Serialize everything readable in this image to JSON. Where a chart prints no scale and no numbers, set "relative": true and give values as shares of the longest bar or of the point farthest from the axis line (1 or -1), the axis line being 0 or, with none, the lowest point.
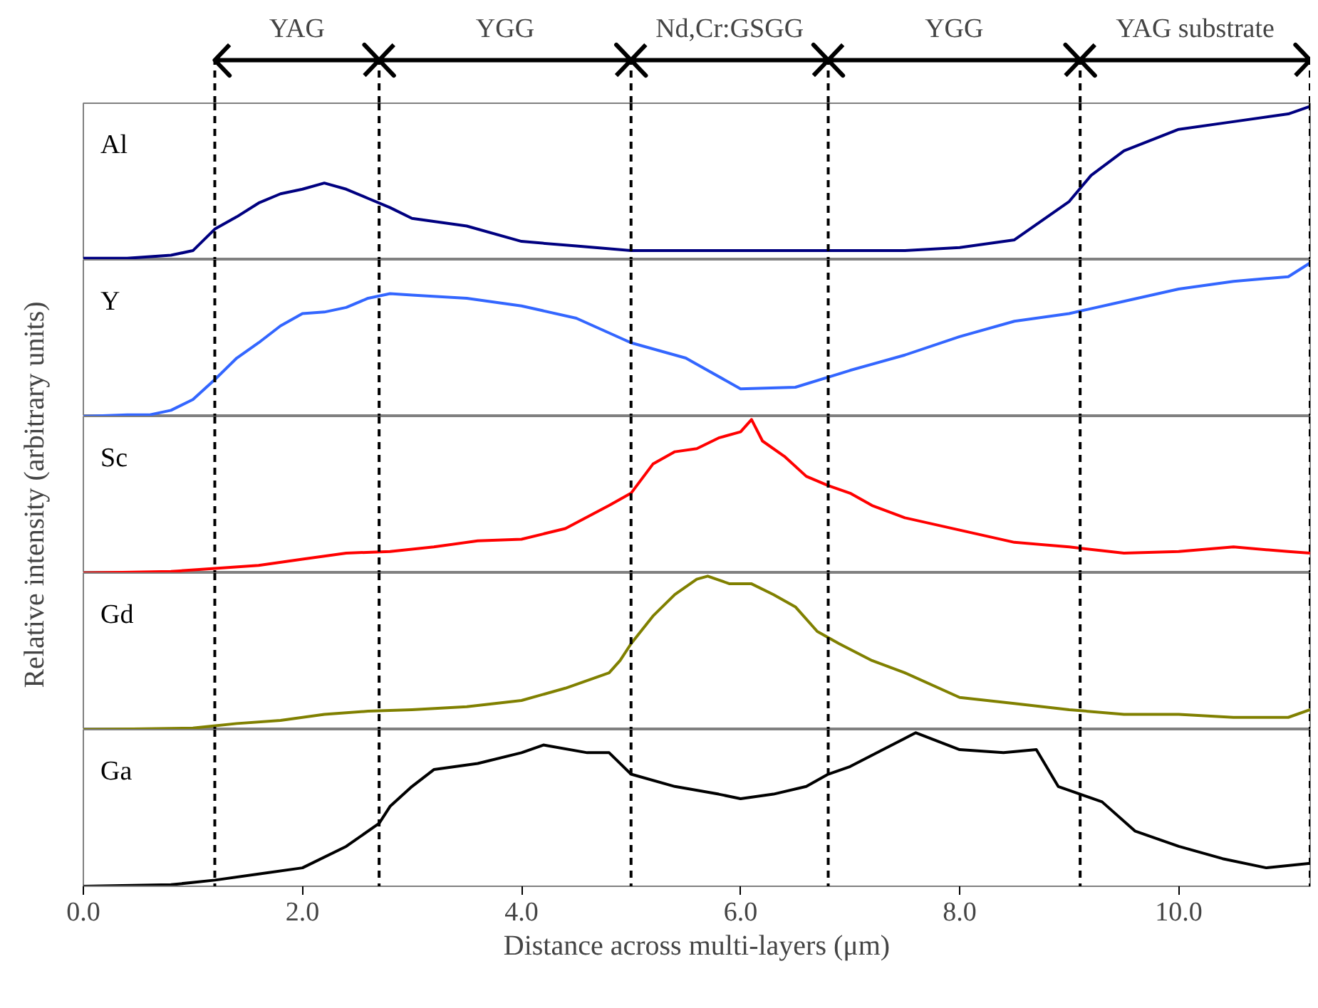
{
  "chart_data": [
    {
      "type": "line",
      "relative": true,
      "xlim": [
        0,
        11.2
      ],
      "tick_labels": false,
      "x": [
        0,
        0.4,
        0.8,
        1.0,
        1.2,
        1.4,
        1.6,
        1.8,
        2.0,
        2.2,
        2.4,
        2.6,
        2.8,
        3.0,
        3.5,
        4.0,
        4.5,
        5.0,
        5.5,
        6.0,
        6.5,
        7.0,
        7.5,
        8.0,
        8.5,
        9.0,
        9.2,
        9.5,
        10.0,
        10.5,
        11.0,
        11.2
      ],
      "series": [
        {
          "name": "Al",
          "color": "#000080",
          "values": [
            0.01,
            0.01,
            0.03,
            0.06,
            0.2,
            0.28,
            0.37,
            0.43,
            0.46,
            0.5,
            0.46,
            0.4,
            0.34,
            0.27,
            0.22,
            0.12,
            0.09,
            0.06,
            0.06,
            0.06,
            0.06,
            0.06,
            0.06,
            0.08,
            0.13,
            0.38,
            0.55,
            0.71,
            0.85,
            0.9,
            0.95,
            1.0
          ]
        }
      ],
      "annotations": [
        "YAG",
        "YGG",
        "Nd,Cr:GSGG",
        "YGG",
        "YAG substrate"
      ],
      "ref_lines": [
        {
          "axis": "x",
          "value": 1.2,
          "line_style": "dashed"
        },
        {
          "axis": "x",
          "value": 2.7,
          "line_style": "dashed"
        },
        {
          "axis": "x",
          "value": 5.0,
          "line_style": "dashed"
        },
        {
          "axis": "x",
          "value": 6.8,
          "line_style": "dashed"
        },
        {
          "axis": "x",
          "value": 9.1,
          "line_style": "dashed"
        },
        {
          "axis": "x",
          "value": 11.2,
          "line_style": "dashed"
        }
      ]
    },
    {
      "type": "line",
      "relative": true,
      "xlim": [
        0,
        11.2
      ],
      "tick_labels": false,
      "x": [
        0,
        0.4,
        0.6,
        0.8,
        1.0,
        1.2,
        1.4,
        1.6,
        1.8,
        2.0,
        2.2,
        2.4,
        2.6,
        2.8,
        3.0,
        3.5,
        4.0,
        4.5,
        5.0,
        5.5,
        6.0,
        6.5,
        7.0,
        7.5,
        8.0,
        8.5,
        9.0,
        9.5,
        10.0,
        10.5,
        11.0,
        11.2
      ],
      "series": [
        {
          "name": "Y",
          "color": "#3366ff",
          "values": [
            0,
            0.01,
            0.01,
            0.04,
            0.11,
            0.24,
            0.38,
            0.48,
            0.59,
            0.67,
            0.68,
            0.71,
            0.77,
            0.8,
            0.79,
            0.77,
            0.72,
            0.64,
            0.48,
            0.38,
            0.18,
            0.19,
            0.3,
            0.4,
            0.52,
            0.62,
            0.67,
            0.75,
            0.83,
            0.88,
            0.91,
            1.0
          ]
        }
      ],
      "ref_lines": [
        {
          "axis": "x",
          "value": 1.2,
          "line_style": "dashed"
        },
        {
          "axis": "x",
          "value": 2.7,
          "line_style": "dashed"
        },
        {
          "axis": "x",
          "value": 5.0,
          "line_style": "dashed"
        },
        {
          "axis": "x",
          "value": 6.8,
          "line_style": "dashed"
        },
        {
          "axis": "x",
          "value": 9.1,
          "line_style": "dashed"
        },
        {
          "axis": "x",
          "value": 11.2,
          "line_style": "dashed"
        }
      ]
    },
    {
      "type": "line",
      "relative": true,
      "xlim": [
        0,
        11.2
      ],
      "tick_labels": false,
      "ylabel": "Relative intensity (arbitrary units)",
      "x": [
        0,
        0.8,
        1.2,
        1.6,
        2.0,
        2.4,
        2.8,
        3.2,
        3.6,
        4.0,
        4.4,
        4.8,
        5.0,
        5.2,
        5.4,
        5.6,
        5.8,
        6.0,
        6.1,
        6.2,
        6.4,
        6.6,
        6.8,
        7.0,
        7.2,
        7.5,
        8.0,
        8.5,
        9.0,
        9.5,
        10.0,
        10.5,
        11.0,
        11.2
      ],
      "series": [
        {
          "name": "Sc",
          "color": "#ff0000",
          "values": [
            0,
            0.01,
            0.03,
            0.05,
            0.09,
            0.13,
            0.14,
            0.17,
            0.21,
            0.22,
            0.29,
            0.44,
            0.52,
            0.71,
            0.79,
            0.81,
            0.88,
            0.92,
            1.0,
            0.86,
            0.76,
            0.63,
            0.57,
            0.52,
            0.44,
            0.36,
            0.28,
            0.2,
            0.17,
            0.13,
            0.14,
            0.17,
            0.14,
            0.13
          ]
        }
      ],
      "ref_lines": [
        {
          "axis": "x",
          "value": 1.2,
          "line_style": "dashed"
        },
        {
          "axis": "x",
          "value": 2.7,
          "line_style": "dashed"
        },
        {
          "axis": "x",
          "value": 5.0,
          "line_style": "dashed"
        },
        {
          "axis": "x",
          "value": 6.8,
          "line_style": "dashed"
        },
        {
          "axis": "x",
          "value": 9.1,
          "line_style": "dashed"
        },
        {
          "axis": "x",
          "value": 11.2,
          "line_style": "dashed"
        }
      ]
    },
    {
      "type": "line",
      "relative": true,
      "xlim": [
        0,
        11.2
      ],
      "tick_labels": false,
      "x": [
        0,
        1.0,
        1.4,
        1.8,
        2.2,
        2.6,
        3.0,
        3.5,
        4.0,
        4.4,
        4.8,
        4.9,
        5.0,
        5.2,
        5.4,
        5.6,
        5.7,
        5.9,
        6.1,
        6.3,
        6.5,
        6.7,
        6.9,
        7.2,
        7.5,
        8.0,
        8.5,
        9.0,
        9.5,
        10.0,
        10.5,
        11.0,
        11.2
      ],
      "series": [
        {
          "name": "Gd",
          "color": "#808000",
          "values": [
            0,
            0.01,
            0.04,
            0.06,
            0.1,
            0.12,
            0.13,
            0.15,
            0.19,
            0.27,
            0.37,
            0.45,
            0.56,
            0.74,
            0.88,
            0.98,
            1.0,
            0.95,
            0.95,
            0.88,
            0.8,
            0.64,
            0.56,
            0.45,
            0.37,
            0.21,
            0.17,
            0.13,
            0.1,
            0.1,
            0.08,
            0.08,
            0.13
          ]
        }
      ],
      "ref_lines": [
        {
          "axis": "x",
          "value": 1.2,
          "line_style": "dashed"
        },
        {
          "axis": "x",
          "value": 2.7,
          "line_style": "dashed"
        },
        {
          "axis": "x",
          "value": 5.0,
          "line_style": "dashed"
        },
        {
          "axis": "x",
          "value": 6.8,
          "line_style": "dashed"
        },
        {
          "axis": "x",
          "value": 9.1,
          "line_style": "dashed"
        },
        {
          "axis": "x",
          "value": 11.2,
          "line_style": "dashed"
        }
      ]
    },
    {
      "type": "line",
      "relative": true,
      "xlim": [
        0,
        11.2
      ],
      "tick_labels": "x",
      "xlabel": "Distance across multi-layers (μm)",
      "xticks": [
        {
          "value": 0,
          "label": "0.0"
        },
        {
          "value": 2,
          "label": "2.0"
        },
        {
          "value": 4,
          "label": "4.0"
        },
        {
          "value": 6,
          "label": "6.0"
        },
        {
          "value": 8,
          "label": "8.0"
        },
        {
          "value": 10,
          "label": "10.0"
        }
      ],
      "x": [
        0,
        0.8,
        1.2,
        1.6,
        2.0,
        2.4,
        2.7,
        2.8,
        3.0,
        3.2,
        3.6,
        4.0,
        4.2,
        4.6,
        4.8,
        5.0,
        5.4,
        5.8,
        6.0,
        6.3,
        6.6,
        6.8,
        7.0,
        7.3,
        7.6,
        8.0,
        8.4,
        8.7,
        8.9,
        9.1,
        9.3,
        9.6,
        10.0,
        10.4,
        10.8,
        11.2
      ],
      "series": [
        {
          "name": "Ga",
          "color": "#000000",
          "values": [
            0,
            0.01,
            0.04,
            0.08,
            0.12,
            0.26,
            0.41,
            0.52,
            0.65,
            0.76,
            0.8,
            0.87,
            0.92,
            0.87,
            0.87,
            0.73,
            0.65,
            0.6,
            0.57,
            0.6,
            0.65,
            0.73,
            0.78,
            0.89,
            1.0,
            0.89,
            0.87,
            0.89,
            0.65,
            0.6,
            0.55,
            0.36,
            0.26,
            0.18,
            0.12,
            0.15
          ]
        }
      ],
      "ref_lines": [
        {
          "axis": "x",
          "value": 1.2,
          "line_style": "dashed"
        },
        {
          "axis": "x",
          "value": 2.7,
          "line_style": "dashed"
        },
        {
          "axis": "x",
          "value": 5.0,
          "line_style": "dashed"
        },
        {
          "axis": "x",
          "value": 6.8,
          "line_style": "dashed"
        },
        {
          "axis": "x",
          "value": 9.1,
          "line_style": "dashed"
        },
        {
          "axis": "x",
          "value": 11.2,
          "line_style": "dashed"
        }
      ]
    }
  ]
}
